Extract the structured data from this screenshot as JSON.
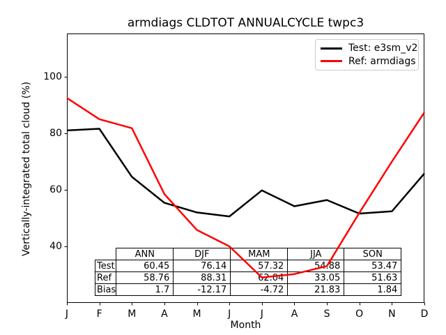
{
  "title": "armdiags CLDTOT ANNUALCYCLE twpc3",
  "xlabel": "Month",
  "ylabel": "Vertically-integrated total cloud (%)",
  "legend": {
    "items": [
      {
        "label": "Test: e3sm_v2",
        "color": "#000000"
      },
      {
        "label": "Ref: armdiags",
        "color": "#ff0000"
      }
    ],
    "position": "upper right"
  },
  "chart_data": {
    "type": "line",
    "title": "armdiags CLDTOT ANNUALCYCLE twpc3",
    "xlabel": "Month",
    "ylabel": "Vertically-integrated total cloud (%)",
    "categories": [
      "J",
      "F",
      "M",
      "A",
      "M",
      "J",
      "J",
      "A",
      "S",
      "O",
      "N",
      "D"
    ],
    "series": [
      {
        "name": "Test: e3sm_v2",
        "color": "#000000",
        "values": [
          81.0,
          81.6,
          64.6,
          55.4,
          52.0,
          50.6,
          59.8,
          54.2,
          56.4,
          51.6,
          52.4,
          65.8
        ]
      },
      {
        "name": "Ref: armdiags",
        "color": "#ff0000",
        "values": [
          92.5,
          85.0,
          81.8,
          58.5,
          45.8,
          40.0,
          29.0,
          30.2,
          33.0,
          51.9,
          70.0,
          87.4
        ]
      }
    ],
    "yticks": [
      100,
      80,
      60,
      40
    ],
    "ylim": [
      20,
      115
    ],
    "grid": false,
    "legend_position": "upper right"
  },
  "table": {
    "columns": [
      "ANN",
      "DJF",
      "MAM",
      "JJA",
      "SON"
    ],
    "rows": [
      {
        "label": "Test",
        "values": [
          "60.45",
          "76.14",
          "57.32",
          "54.88",
          "53.47"
        ]
      },
      {
        "label": "Ref",
        "values": [
          "58.76",
          "88.31",
          "62.04",
          "33.05",
          "51.63"
        ]
      },
      {
        "label": "Bias",
        "values": [
          "1.7",
          "-12.17",
          "-4.72",
          "21.83",
          "1.84"
        ]
      }
    ]
  }
}
